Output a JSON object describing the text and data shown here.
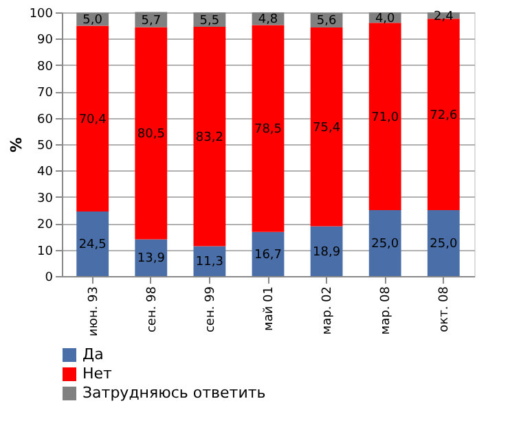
{
  "chart_data": {
    "type": "bar",
    "stacked": true,
    "ylabel": "%",
    "categories": [
      "июн. 93",
      "сен. 98",
      "сен. 99",
      "май 01",
      "мар. 02",
      "мар. 08",
      "окт. 08"
    ],
    "series": [
      {
        "name": "Да",
        "color": "#4a6fa8",
        "values": [
          24.5,
          13.9,
          11.3,
          16.7,
          18.9,
          25.0,
          25.0
        ],
        "value_labels": [
          "24,5",
          "13,9",
          "11,3",
          "16,7",
          "18,9",
          "25,0",
          "25,0"
        ]
      },
      {
        "name": "Нет",
        "color": "#ff0000",
        "values": [
          70.4,
          80.5,
          83.2,
          78.5,
          75.4,
          71.0,
          72.6
        ],
        "value_labels": [
          "70,4",
          "80,5",
          "83,2",
          "78,5",
          "75,4",
          "71,0",
          "72,6"
        ]
      },
      {
        "name": "Затрудняюсь ответить",
        "color": "#808080",
        "values": [
          5.0,
          5.7,
          5.5,
          4.8,
          5.6,
          4.0,
          2.4
        ],
        "value_labels": [
          "5,0",
          "5,7",
          "5,5",
          "4,8",
          "5,6",
          "4,0",
          "2,4"
        ]
      }
    ],
    "ylim": [
      0,
      100
    ],
    "yticks": [
      0,
      10,
      20,
      30,
      40,
      50,
      60,
      70,
      80,
      90,
      100
    ],
    "grid": "y",
    "legend": "bottom left"
  }
}
